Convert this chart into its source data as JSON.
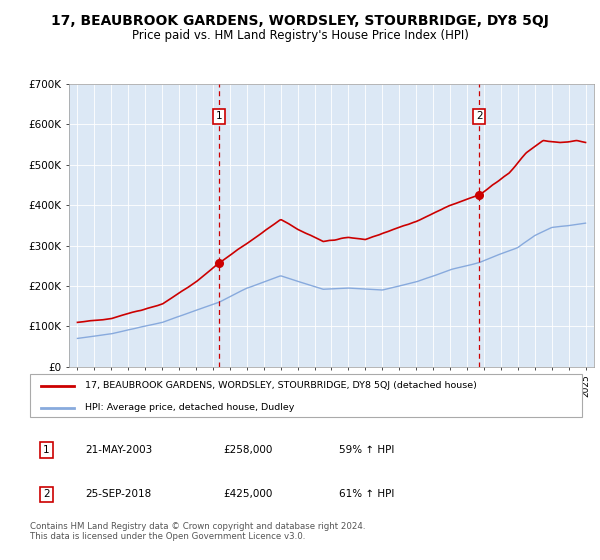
{
  "title": "17, BEAUBROOK GARDENS, WORDSLEY, STOURBRIDGE, DY8 5QJ",
  "subtitle": "Price paid vs. HM Land Registry's House Price Index (HPI)",
  "legend_line1": "17, BEAUBROOK GARDENS, WORDSLEY, STOURBRIDGE, DY8 5QJ (detached house)",
  "legend_line2": "HPI: Average price, detached house, Dudley",
  "footer": "Contains HM Land Registry data © Crown copyright and database right 2024.\nThis data is licensed under the Open Government Licence v3.0.",
  "sale1_label": "1",
  "sale1_date": "21-MAY-2003",
  "sale1_price": "£258,000",
  "sale1_hpi": "59% ↑ HPI",
  "sale1_year": 2003.38,
  "sale1_value": 258000,
  "sale2_label": "2",
  "sale2_date": "25-SEP-2018",
  "sale2_price": "£425,000",
  "sale2_hpi": "61% ↑ HPI",
  "sale2_year": 2018.73,
  "sale2_value": 425000,
  "ylim": [
    0,
    700000
  ],
  "yticks": [
    0,
    100000,
    200000,
    300000,
    400000,
    500000,
    600000,
    700000
  ],
  "ytick_labels": [
    "£0",
    "£100K",
    "£200K",
    "£300K",
    "£400K",
    "£500K",
    "£600K",
    "£700K"
  ],
  "xlim_start": 1994.5,
  "xlim_end": 2025.5,
  "plot_bg": "#dce8f5",
  "red_color": "#cc0000",
  "blue_color": "#88aadd",
  "marker_box_color": "#cc0000",
  "grid_color": "#ffffff",
  "title_fontsize": 10,
  "subtitle_fontsize": 8.5
}
